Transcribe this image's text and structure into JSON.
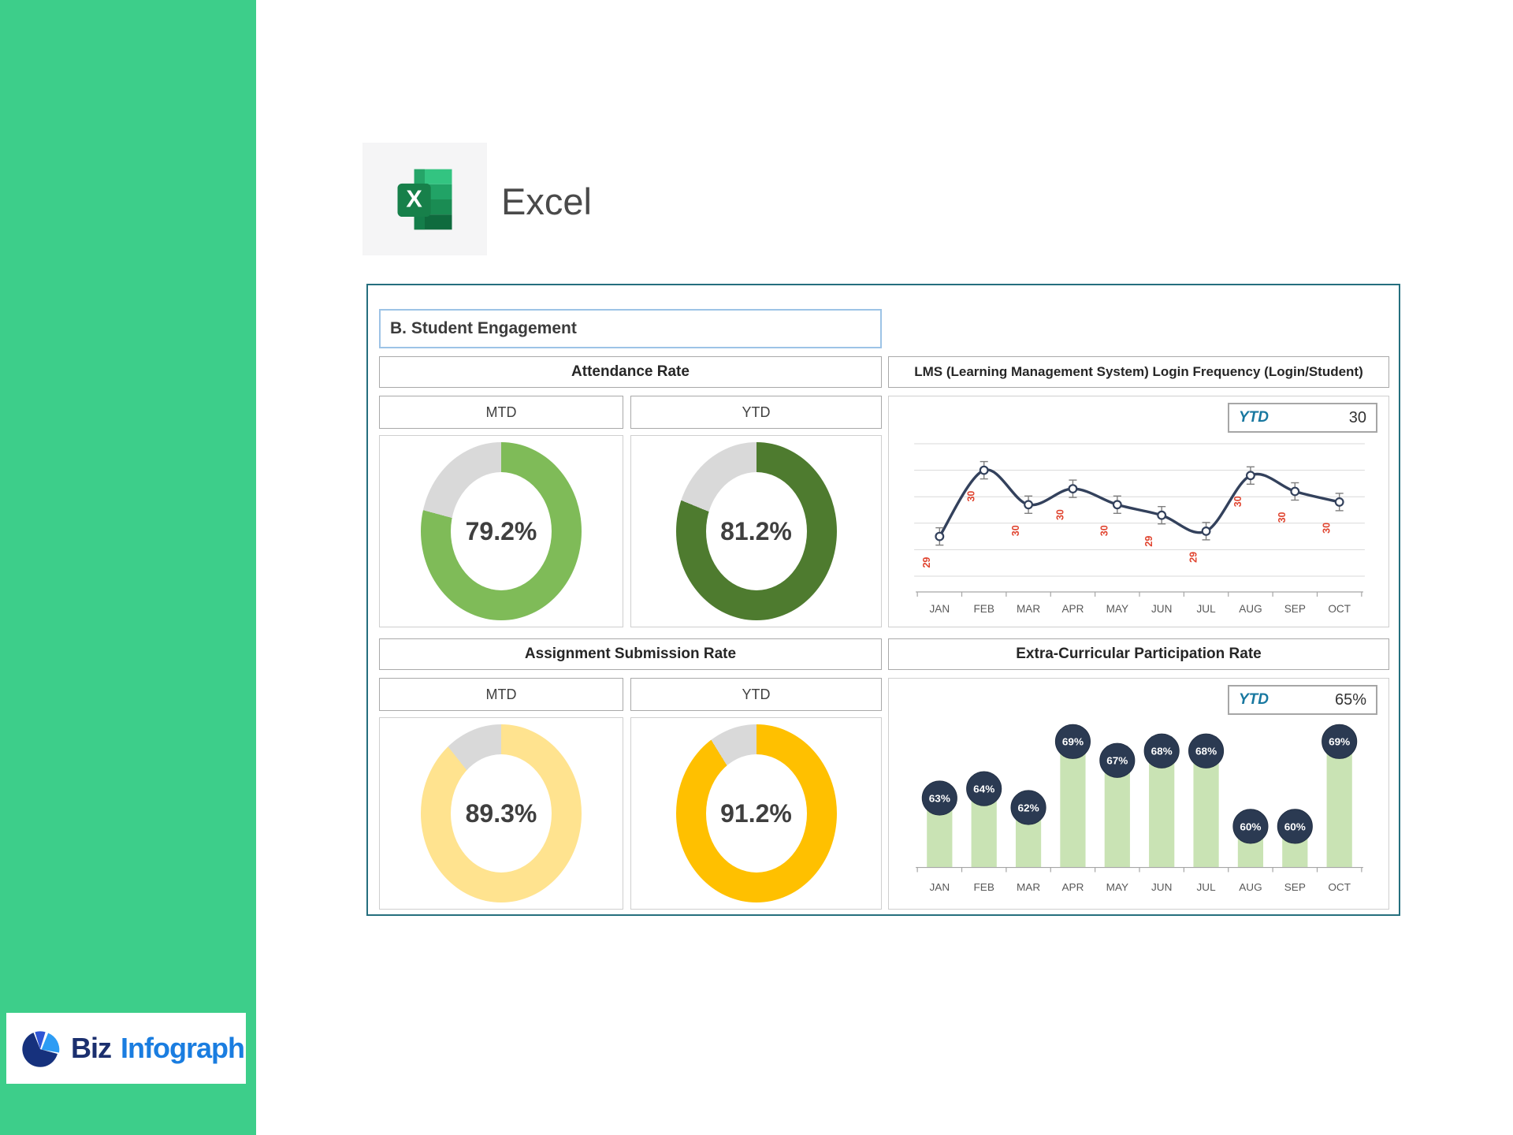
{
  "brand": {
    "word1": "Biz",
    "word2": "Infograph"
  },
  "app": {
    "label": "Excel"
  },
  "dashboard": {
    "title": "B. Student Engagement",
    "attendance": {
      "header": "Attendance Rate",
      "mtd_label": "MTD",
      "ytd_label": "YTD",
      "mtd_value": "79.2%",
      "ytd_value": "81.2%"
    },
    "lms": {
      "header": "LMS (Learning Management System) Login Frequency (Login/Student)",
      "ytd_label": "YTD",
      "ytd_value": "30"
    },
    "assignment": {
      "header": "Assignment Submission Rate",
      "mtd_label": "MTD",
      "ytd_label": "YTD",
      "mtd_value": "89.3%",
      "ytd_value": "91.2%"
    },
    "extra": {
      "header": "Extra-Curricular Participation Rate",
      "ytd_label": "YTD",
      "ytd_value": "65%"
    }
  },
  "donuts": {
    "attendance_mtd": {
      "pct": 79.2,
      "color": "#7FBB58"
    },
    "attendance_ytd": {
      "pct": 81.2,
      "color": "#4E7B2F"
    },
    "assignment_mtd": {
      "pct": 89.3,
      "color": "#FFE38F"
    },
    "assignment_ytd": {
      "pct": 91.2,
      "color": "#FFC000"
    }
  },
  "colors": {
    "sidebar_green": "#3DCE8A",
    "dashboard_border": "#256F7E",
    "title_border": "#9DC3E6",
    "remainder_gray": "#D9D9D9",
    "line_navy": "#33415C",
    "label_red": "#E0442F",
    "bar_green": "#C9E3B4",
    "badge_navy": "#2B3A52",
    "accent_teal": "#1878A0",
    "gridline_gray": "#D9D9D9",
    "axis_gray": "#A6A6A6",
    "month_gray": "#595959"
  },
  "chart_data": [
    {
      "type": "donut",
      "title": "Attendance Rate",
      "unit": "%",
      "series": [
        {
          "name": "MTD",
          "value": 79.2
        },
        {
          "name": "YTD",
          "value": 81.2
        }
      ]
    },
    {
      "type": "line",
      "title": "LMS (Learning Management System) Login Frequency (Login/Student)",
      "x": [
        "JAN",
        "FEB",
        "MAR",
        "APR",
        "MAY",
        "JUN",
        "JUL",
        "AUG",
        "SEP",
        "OCT"
      ],
      "values": [
        29,
        30,
        30,
        30,
        30,
        29,
        29,
        30,
        30,
        30
      ],
      "curve_y_estimate": [
        29.25,
        30.5,
        29.85,
        30.15,
        29.85,
        29.65,
        29.35,
        30.4,
        30.1,
        29.9
      ],
      "ytd": 30,
      "ylim": [
        28.5,
        31
      ],
      "gridlines": 6,
      "error_bars": true,
      "legend": "none",
      "point_label_rotation": -90
    },
    {
      "type": "donut",
      "title": "Assignment Submission Rate",
      "unit": "%",
      "series": [
        {
          "name": "MTD",
          "value": 89.3
        },
        {
          "name": "YTD",
          "value": 91.2
        }
      ]
    },
    {
      "type": "bar",
      "title": "Extra-Curricular Participation Rate",
      "categories": [
        "JAN",
        "FEB",
        "MAR",
        "APR",
        "MAY",
        "JUN",
        "JUL",
        "AUG",
        "SEP",
        "OCT"
      ],
      "values": [
        63,
        64,
        62,
        69,
        67,
        68,
        68,
        60,
        60,
        69
      ],
      "labels": [
        "63%",
        "64%",
        "62%",
        "69%",
        "67%",
        "68%",
        "68%",
        "60%",
        "60%",
        "69%"
      ],
      "ytd": "65%",
      "ylim_hint": [
        55.8,
        70.5
      ],
      "legend": "none"
    }
  ]
}
